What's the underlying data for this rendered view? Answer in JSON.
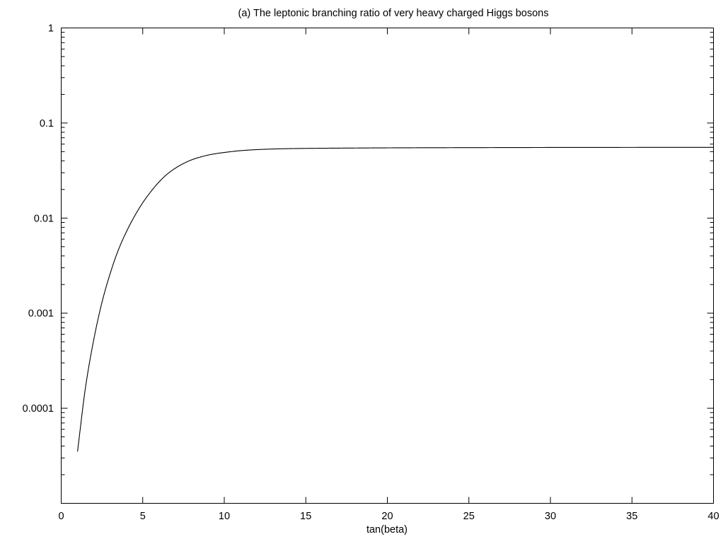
{
  "chart_data": {
    "type": "line",
    "title": "(a) The leptonic branching ratio of very heavy charged Higgs bosons",
    "xlabel": "tan(beta)",
    "ylabel": "",
    "xlim": [
      0,
      40
    ],
    "ylim": [
      1e-05,
      1
    ],
    "yscale": "log",
    "grid": false,
    "x_ticks": [
      "0",
      "5",
      "10",
      "15",
      "20",
      "25",
      "30",
      "35",
      "40"
    ],
    "y_ticks": [
      "1",
      "0.1",
      "0.01",
      "0.001",
      "0.0001"
    ],
    "series": [
      {
        "x": [
          1.0,
          1.5,
          2.0,
          2.5,
          3.0,
          3.5,
          4.0,
          4.5,
          5.0,
          5.5,
          6.0,
          6.5,
          7.0,
          7.5,
          8.0,
          8.5,
          9.0,
          9.5,
          10.0,
          11.0,
          12.0,
          13.0,
          14.0,
          15.0,
          17.5,
          20.0,
          25.0,
          30.0,
          35.0,
          40.0
        ],
        "y": [
          3.5e-05,
          0.00017,
          0.00053,
          0.0013,
          0.0026,
          0.0046,
          0.0072,
          0.0105,
          0.0145,
          0.019,
          0.024,
          0.029,
          0.0335,
          0.0375,
          0.041,
          0.0437,
          0.046,
          0.0477,
          0.049,
          0.0512,
          0.0525,
          0.0533,
          0.0538,
          0.0541,
          0.0545,
          0.0548,
          0.0551,
          0.0553,
          0.0554,
          0.0555
        ]
      }
    ]
  }
}
